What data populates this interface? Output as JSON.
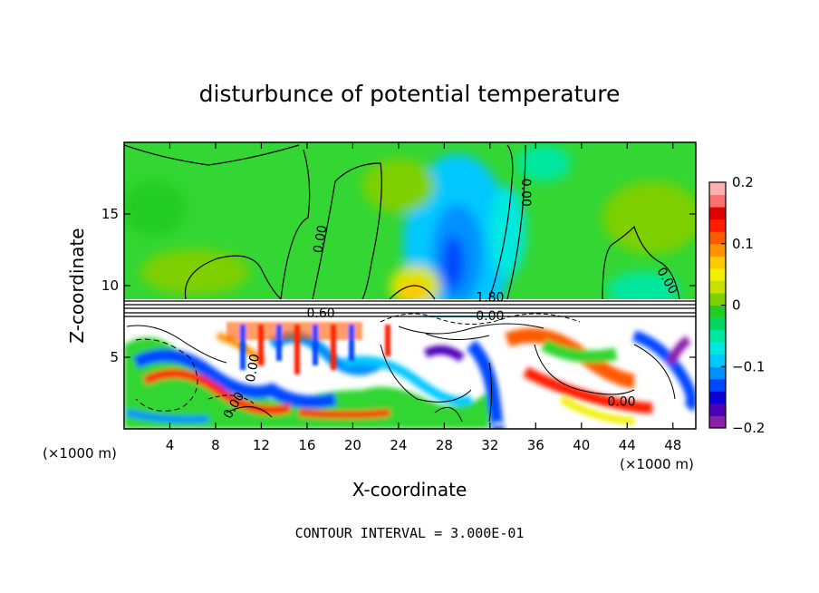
{
  "chart_data": {
    "type": "heatmap",
    "title": "disturbunce of potential temperature",
    "xlabel": "X-coordinate",
    "ylabel": "Z-coordinate",
    "x_unit": "(×1000 m)",
    "x_unit_right": "(×1000 m)",
    "footer": "CONTOUR INTERVAL = 3.000E-01",
    "xlim": [
      0,
      50
    ],
    "ylim": [
      0,
      20
    ],
    "x_ticks": [
      4,
      8,
      12,
      16,
      20,
      24,
      28,
      32,
      36,
      40,
      44,
      48
    ],
    "y_ticks": [
      5,
      10,
      15
    ],
    "colorbar": {
      "min": -0.2,
      "max": 0.2,
      "ticks": [
        0.2,
        0.1,
        0,
        -0.1,
        -0.2
      ],
      "tick_labels": [
        "0.2",
        "0.1",
        "0",
        "−0.1",
        "−0.2"
      ],
      "colors": [
        "#8b1fa8",
        "#4b00b8",
        "#0a00d8",
        "#0047ff",
        "#0090ff",
        "#00c8ff",
        "#00e8e0",
        "#00e8a0",
        "#00d860",
        "#22cc22",
        "#7ed000",
        "#c8e000",
        "#f0f000",
        "#ffc800",
        "#ff9000",
        "#ff5a00",
        "#ff1e00",
        "#e00000",
        "#ff7070",
        "#ffb0b0"
      ]
    },
    "contour_labels": [
      {
        "text": "0.00",
        "x": 17.5,
        "z": 13.2,
        "rotate": -80
      },
      {
        "text": "0.00",
        "x": 34.8,
        "z": 16.5,
        "rotate": 90
      },
      {
        "text": "0.00",
        "x": 47.2,
        "z": 10.2,
        "rotate": 60
      },
      {
        "text": "0.60",
        "x": 17.2,
        "z": 7.8,
        "rotate": 0
      },
      {
        "text": "1.80",
        "x": 32.0,
        "z": 8.9,
        "rotate": 0
      },
      {
        "text": "0.00",
        "x": 32.0,
        "z": 7.6,
        "rotate": 0
      },
      {
        "text": "0.00",
        "x": 43.5,
        "z": 1.6,
        "rotate": 0
      },
      {
        "text": "0.00",
        "x": 11.6,
        "z": 4.2,
        "rotate": -80
      },
      {
        "text": "0.00",
        "x": 9.9,
        "z": 1.5,
        "rotate": -60
      }
    ]
  }
}
